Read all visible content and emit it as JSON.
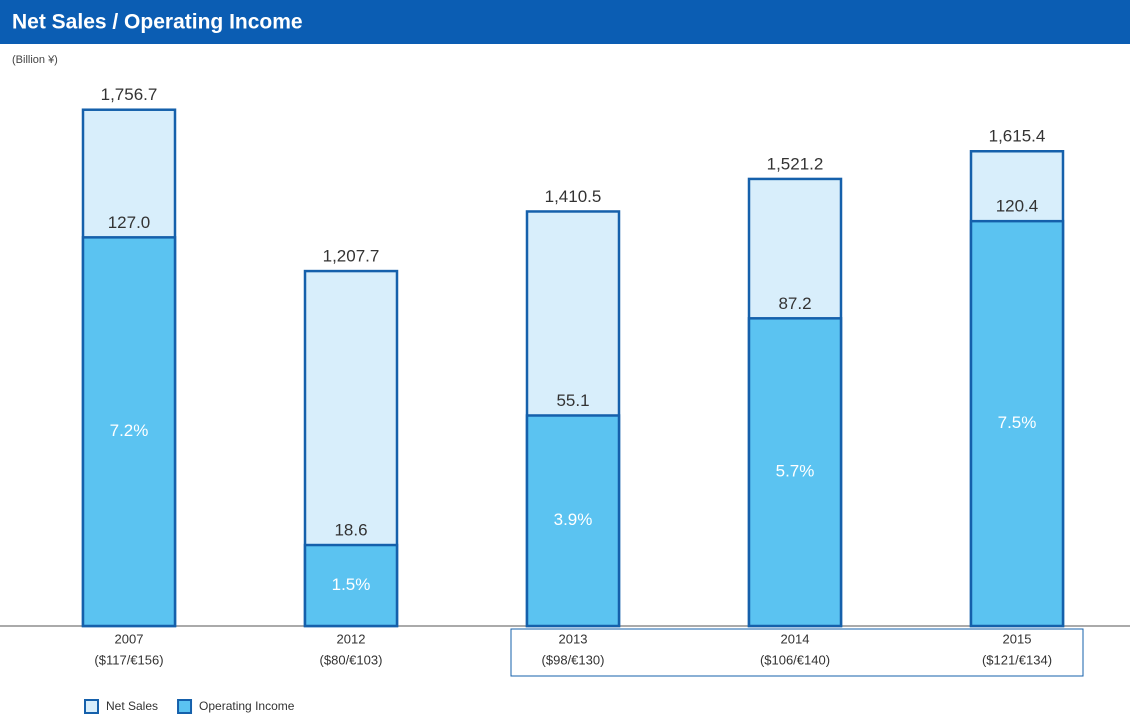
{
  "chart_data": {
    "type": "bar",
    "title": "Net Sales / Operating Income",
    "unit_label": "(Billion ¥)",
    "categories": [
      "2007",
      "2012",
      "2013",
      "2014",
      "2015"
    ],
    "exchange_rates": [
      "($117/€156)",
      "($80/€103)",
      "($98/€130)",
      "($106/€140)",
      "($121/€134)"
    ],
    "series": [
      {
        "name": "Net Sales",
        "color": "#d8eefb",
        "values": [
          1756.7,
          1207.7,
          1410.5,
          1521.2,
          1615.4
        ],
        "value_labels": [
          "1,756.7",
          "1,207.7",
          "1,410.5",
          "1,521.2",
          "1,615.4"
        ]
      },
      {
        "name": "Operating Income",
        "color": "#5bc3f1",
        "values": [
          127.0,
          18.6,
          55.1,
          87.2,
          120.4
        ],
        "value_labels": [
          "127.0",
          "18.6",
          "55.1",
          "87.2",
          "120.4"
        ]
      }
    ],
    "margins": {
      "values": [
        7.2,
        1.5,
        3.9,
        5.7,
        7.5
      ],
      "value_labels": [
        "7.2%",
        "1.5%",
        "3.9%",
        "5.7%",
        "7.5%"
      ],
      "axis": "y2"
    },
    "ylim": [
      0,
      1800
    ],
    "y2lim": [
      0,
      9.8
    ],
    "outline_color": "#1560ab"
  }
}
